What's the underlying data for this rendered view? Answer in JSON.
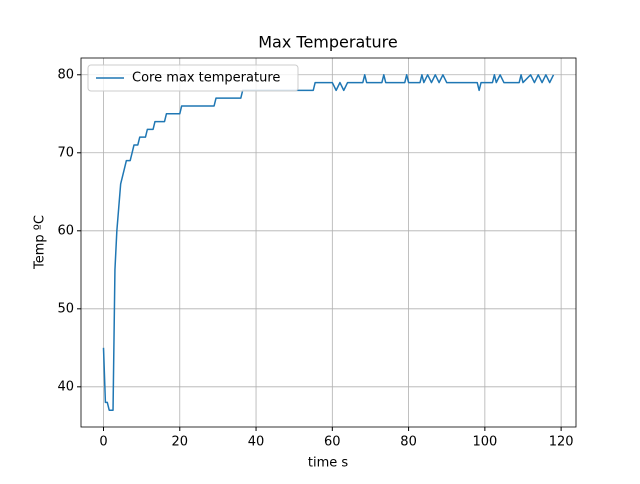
{
  "chart_data": {
    "type": "line",
    "title": "Max Temperature",
    "x_label": "time s",
    "y_label": "Temp ºC",
    "x": [
      0,
      0.5,
      1,
      1.5,
      2.5,
      3,
      3.5,
      4,
      4.5,
      5,
      5.5,
      6,
      7,
      7.5,
      8,
      9,
      9.5,
      11,
      11.5,
      13,
      13.5,
      16,
      16.5,
      20,
      20.5,
      29,
      29.5,
      36,
      36.5,
      48,
      55,
      55.5,
      60,
      61,
      62,
      63,
      64,
      68,
      68.5,
      69,
      73,
      73.5,
      74,
      79,
      79.5,
      80,
      83,
      83.5,
      84,
      85,
      86,
      87,
      88,
      89,
      90,
      98,
      98.5,
      99,
      102,
      102.5,
      103,
      104,
      105,
      106,
      109,
      109.5,
      110,
      112,
      113,
      114,
      115,
      116,
      117,
      118
    ],
    "series": [
      {
        "name": "Core max temperature",
        "color": "#1f77b4",
        "values": [
          45,
          38,
          38,
          37,
          37,
          55,
          60,
          63,
          66,
          67,
          68,
          69,
          69,
          70,
          71,
          71,
          72,
          72,
          73,
          73,
          74,
          74,
          75,
          75,
          76,
          76,
          77,
          77,
          78,
          78,
          78,
          79,
          79,
          78,
          79,
          78,
          79,
          79,
          80,
          79,
          79,
          80,
          79,
          79,
          80,
          79,
          79,
          80,
          79,
          80,
          79,
          80,
          79,
          80,
          79,
          79,
          78,
          79,
          79,
          80,
          79,
          80,
          79,
          79,
          79,
          80,
          79,
          80,
          79,
          80,
          79,
          80,
          79,
          80
        ]
      }
    ],
    "xlim": [
      -5.9,
      123.9
    ],
    "ylim": [
      34.85,
      82.15
    ],
    "xticks": [
      0,
      20,
      40,
      60,
      80,
      100,
      120
    ],
    "yticks": [
      40,
      50,
      60,
      70,
      80
    ],
    "grid": true,
    "legend": "upper left"
  }
}
